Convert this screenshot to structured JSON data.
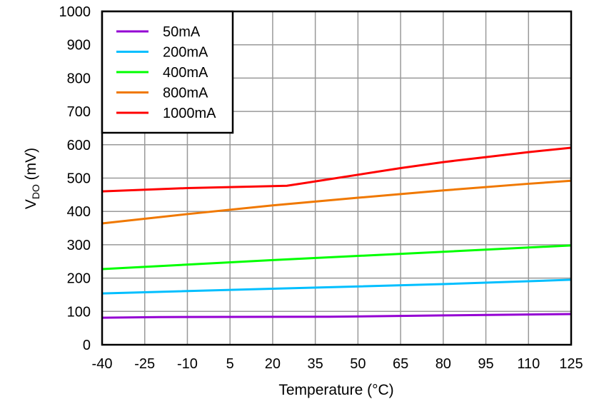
{
  "chart_data": {
    "type": "line",
    "xlabel": "Temperature (°C)",
    "ylabel": {
      "main": "V",
      "sub": "DO",
      "unit": " (mV)"
    },
    "xlim": [
      -40,
      125
    ],
    "ylim": [
      0,
      1000
    ],
    "xticks": [
      -40,
      -25,
      -10,
      5,
      20,
      35,
      50,
      65,
      80,
      95,
      110,
      125
    ],
    "yticks": [
      0,
      100,
      200,
      300,
      400,
      500,
      600,
      700,
      800,
      900,
      1000
    ],
    "grid": true,
    "legend": "top-left",
    "series": [
      {
        "name": "50mA",
        "color": "#9400D3",
        "points": [
          [
            -40,
            81
          ],
          [
            -20,
            83
          ],
          [
            40,
            84
          ],
          [
            80,
            88
          ],
          [
            125,
            92
          ]
        ]
      },
      {
        "name": "200mA",
        "color": "#00BFFF",
        "points": [
          [
            -40,
            154
          ],
          [
            20,
            168
          ],
          [
            80,
            182
          ],
          [
            125,
            195
          ]
        ]
      },
      {
        "name": "400mA",
        "color": "#00FF00",
        "points": [
          [
            -40,
            227
          ],
          [
            20,
            254
          ],
          [
            80,
            279
          ],
          [
            125,
            298
          ]
        ]
      },
      {
        "name": "800mA",
        "color": "#F07800",
        "points": [
          [
            -40,
            364
          ],
          [
            -10,
            392
          ],
          [
            20,
            418
          ],
          [
            50,
            441
          ],
          [
            80,
            463
          ],
          [
            110,
            483
          ],
          [
            125,
            492
          ]
        ]
      },
      {
        "name": "1000mA",
        "color": "#FF0000",
        "points": [
          [
            -40,
            460
          ],
          [
            -10,
            470
          ],
          [
            25,
            477
          ],
          [
            35,
            490
          ],
          [
            50,
            510
          ],
          [
            65,
            530
          ],
          [
            80,
            548
          ],
          [
            95,
            563
          ],
          [
            110,
            578
          ],
          [
            125,
            591
          ]
        ]
      }
    ]
  }
}
